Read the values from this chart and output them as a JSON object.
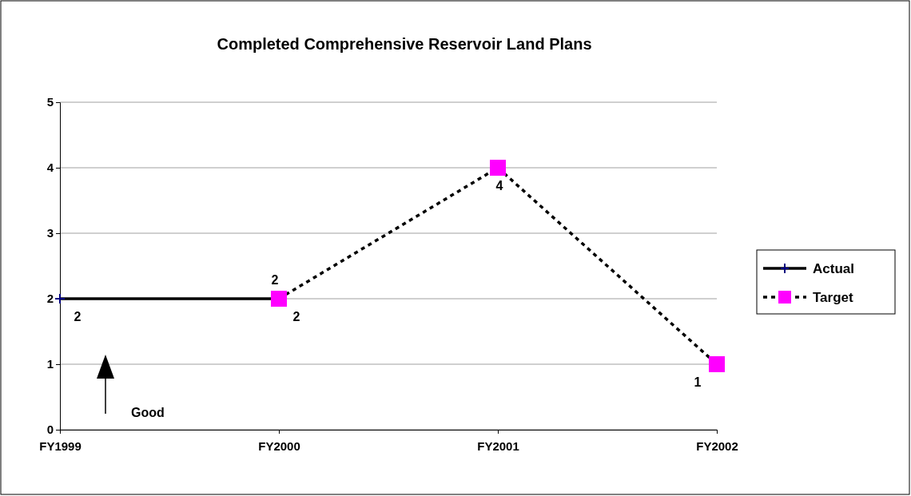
{
  "chart_data": {
    "type": "line",
    "title": "Completed Comprehensive Reservoir Land Plans",
    "categories": [
      "FY1999",
      "FY2000",
      "FY2001",
      "FY2002"
    ],
    "series": [
      {
        "name": "Actual",
        "color": "#000080",
        "values": [
          2,
          2,
          null,
          null
        ],
        "marker": "cross",
        "line_style": "solid"
      },
      {
        "name": "Target",
        "color": "#ff00ff",
        "values": [
          null,
          2,
          4,
          1
        ],
        "marker": "square",
        "line_style": "dotted"
      }
    ],
    "ylim": [
      0,
      5
    ],
    "yticks": [
      0,
      1,
      2,
      3,
      4,
      5
    ],
    "grid": "y",
    "legend": "right",
    "data_labels": true,
    "annotations": [
      "Good"
    ]
  }
}
